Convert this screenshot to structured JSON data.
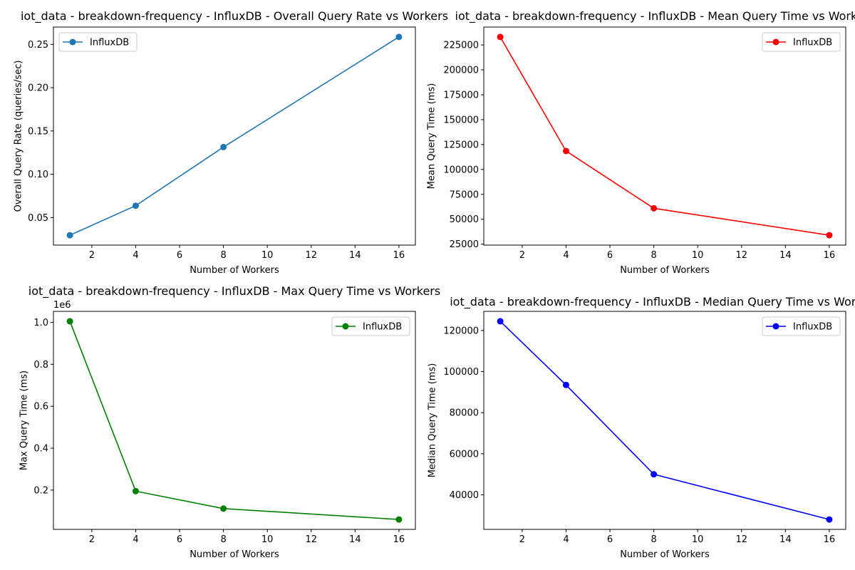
{
  "chart_data": [
    {
      "type": "line",
      "title": "iot_data - breakdown-frequency - InfluxDB - Overall Query Rate vs Workers",
      "xlabel": "Number of Workers",
      "ylabel": "Overall Query Rate (queries/sec)",
      "x": [
        1,
        4,
        8,
        16
      ],
      "series": [
        {
          "name": "InfluxDB",
          "color": "#1f77b4",
          "marker": "circle",
          "values": [
            0.0296,
            0.0637,
            0.1314,
            0.2586
          ]
        }
      ],
      "xlim": [
        0.25,
        16.75
      ],
      "ylim": [
        0.0182,
        0.27
      ],
      "xticks": [
        2,
        4,
        6,
        8,
        10,
        12,
        14,
        16
      ],
      "yticks": [
        0.05,
        0.1,
        0.15,
        0.2,
        0.25
      ],
      "ytick_labels": [
        "0.05",
        "0.10",
        "0.15",
        "0.20",
        "0.25"
      ],
      "offset_text": "",
      "legend": "upper-left",
      "grid": false
    },
    {
      "type": "line",
      "title": "iot_data - breakdown-frequency - InfluxDB - Mean Query Time vs Workers",
      "xlabel": "Number of Workers",
      "ylabel": "Mean Query Time (ms)",
      "x": [
        1,
        4,
        8,
        16
      ],
      "series": [
        {
          "name": "InfluxDB",
          "color": "#ff0000",
          "marker": "circle",
          "values": [
            233000,
            118500,
            61000,
            34000
          ]
        }
      ],
      "xlim": [
        0.25,
        16.75
      ],
      "ylim": [
        24050,
        242950
      ],
      "xticks": [
        2,
        4,
        6,
        8,
        10,
        12,
        14,
        16
      ],
      "yticks": [
        25000,
        50000,
        75000,
        100000,
        125000,
        150000,
        175000,
        200000,
        225000
      ],
      "ytick_labels": [
        "25000",
        "50000",
        "75000",
        "100000",
        "125000",
        "150000",
        "175000",
        "200000",
        "225000"
      ],
      "offset_text": "",
      "legend": "upper-right",
      "grid": false
    },
    {
      "type": "line",
      "title": "iot_data - breakdown-frequency - InfluxDB - Max Query Time vs Workers",
      "xlabel": "Number of Workers",
      "ylabel": "Max Query Time (ms)",
      "x": [
        1,
        4,
        8,
        16
      ],
      "series": [
        {
          "name": "InfluxDB",
          "color": "#008000",
          "marker": "circle",
          "values": [
            1005000,
            195000,
            112000,
            60000
          ]
        }
      ],
      "xlim": [
        0.25,
        16.75
      ],
      "ylim": [
        12750,
        1052250
      ],
      "xticks": [
        2,
        4,
        6,
        8,
        10,
        12,
        14,
        16
      ],
      "yticks": [
        200000,
        400000,
        600000,
        800000,
        1000000
      ],
      "ytick_labels": [
        "0.2",
        "0.4",
        "0.6",
        "0.8",
        "1.0"
      ],
      "offset_text": "1e6",
      "legend": "upper-right",
      "grid": false
    },
    {
      "type": "line",
      "title": "iot_data - breakdown-frequency - InfluxDB - Median Query Time vs Workers",
      "xlabel": "Number of Workers",
      "ylabel": "Median Query Time (ms)",
      "x": [
        1,
        4,
        8,
        16
      ],
      "series": [
        {
          "name": "InfluxDB",
          "color": "#0000ff",
          "marker": "circle",
          "values": [
            124500,
            93500,
            50000,
            28000
          ]
        }
      ],
      "xlim": [
        0.25,
        16.75
      ],
      "ylim": [
        23175,
        129325
      ],
      "xticks": [
        2,
        4,
        6,
        8,
        10,
        12,
        14,
        16
      ],
      "yticks": [
        40000,
        60000,
        80000,
        100000,
        120000
      ],
      "ytick_labels": [
        "40000",
        "60000",
        "80000",
        "100000",
        "120000"
      ],
      "offset_text": "",
      "legend": "upper-right",
      "grid": false
    }
  ]
}
